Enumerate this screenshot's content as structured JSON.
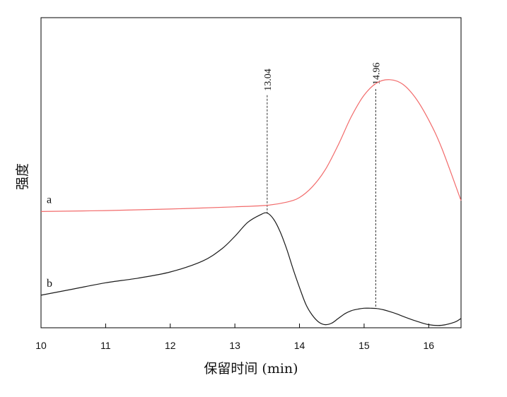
{
  "chart_data": {
    "type": "line",
    "xlabel": "保留时间 (min)",
    "ylabel": "强度",
    "xlim": [
      10,
      16.5
    ],
    "ylim": [
      0,
      1
    ],
    "xticks": [
      "10",
      "11",
      "12",
      "13",
      "14",
      "15",
      "16"
    ],
    "grid": false,
    "colors": {
      "a": "#f26b6b",
      "b": "#1a1a1a"
    },
    "series": [
      {
        "name": "a",
        "x": [
          10.0,
          11.0,
          12.0,
          13.0,
          13.5,
          13.8,
          14.0,
          14.2,
          14.4,
          14.6,
          14.8,
          15.0,
          15.2,
          15.4,
          15.6,
          15.8,
          16.0,
          16.2,
          16.5
        ],
        "y": [
          0.375,
          0.378,
          0.383,
          0.39,
          0.395,
          0.405,
          0.42,
          0.455,
          0.51,
          0.59,
          0.68,
          0.75,
          0.79,
          0.8,
          0.785,
          0.74,
          0.67,
          0.58,
          0.41
        ]
      },
      {
        "name": "b",
        "x": [
          10.0,
          10.5,
          11.0,
          11.5,
          12.0,
          12.5,
          12.8,
          13.0,
          13.2,
          13.4,
          13.5,
          13.6,
          13.7,
          13.8,
          13.9,
          14.0,
          14.1,
          14.2,
          14.3,
          14.4,
          14.5,
          14.6,
          14.7,
          14.8,
          14.9,
          15.0,
          15.1,
          15.2,
          15.3,
          15.4,
          15.5,
          15.6,
          15.8,
          16.0,
          16.2,
          16.4,
          16.5
        ],
        "y": [
          0.105,
          0.125,
          0.145,
          0.16,
          0.18,
          0.215,
          0.255,
          0.295,
          0.34,
          0.365,
          0.37,
          0.35,
          0.31,
          0.255,
          0.19,
          0.13,
          0.075,
          0.04,
          0.018,
          0.01,
          0.015,
          0.03,
          0.045,
          0.055,
          0.06,
          0.063,
          0.063,
          0.062,
          0.058,
          0.052,
          0.045,
          0.037,
          0.022,
          0.01,
          0.008,
          0.018,
          0.03
        ]
      }
    ],
    "annotations": [
      {
        "label": "13.04",
        "x": 13.5,
        "y_top": 0.75,
        "y_bottom": 0.37
      },
      {
        "label": "14.96",
        "x": 15.18,
        "y_top": 0.77,
        "y_bottom": 0.062
      }
    ]
  }
}
